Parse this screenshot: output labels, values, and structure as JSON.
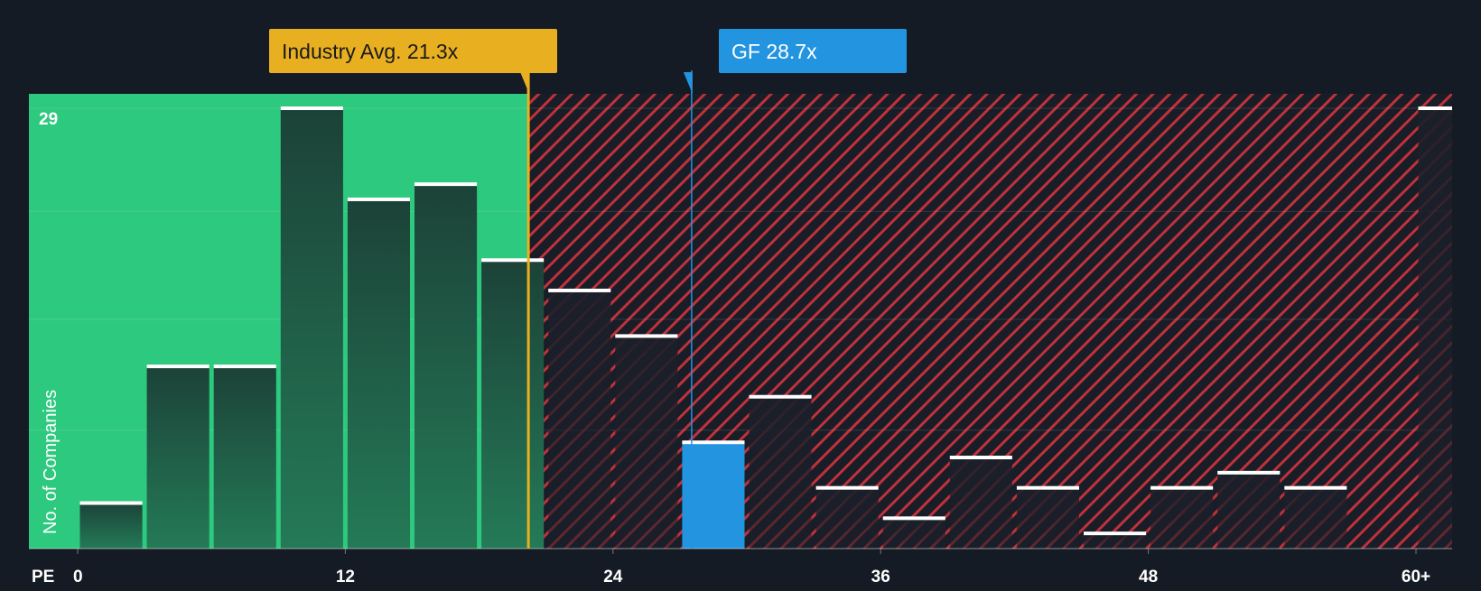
{
  "chart_data": {
    "type": "bar",
    "title": "",
    "xlabel": "PE",
    "ylabel": "No. of Companies",
    "y_tick_label": "29",
    "ylim": [
      0,
      30
    ],
    "xlim": [
      0,
      61.5
    ],
    "x_ticks": [
      {
        "value": 0,
        "label": "0"
      },
      {
        "value": 12,
        "label": "12"
      },
      {
        "value": 24,
        "label": "24"
      },
      {
        "value": 36,
        "label": "36"
      },
      {
        "value": 48,
        "label": "48"
      },
      {
        "value": 60,
        "label": "60+"
      }
    ],
    "bin_width": 3,
    "bins": [
      {
        "start": 0,
        "value": 3
      },
      {
        "start": 3,
        "value": 12
      },
      {
        "start": 6,
        "value": 12
      },
      {
        "start": 9,
        "value": 29
      },
      {
        "start": 12,
        "value": 23
      },
      {
        "start": 15,
        "value": 24
      },
      {
        "start": 18,
        "value": 19
      },
      {
        "start": 21,
        "value": 17
      },
      {
        "start": 24,
        "value": 14
      },
      {
        "start": 27,
        "value": 7
      },
      {
        "start": 30,
        "value": 10
      },
      {
        "start": 33,
        "value": 4
      },
      {
        "start": 36,
        "value": 2
      },
      {
        "start": 39,
        "value": 6
      },
      {
        "start": 42,
        "value": 4
      },
      {
        "start": 45,
        "value": 1
      },
      {
        "start": 48,
        "value": 4
      },
      {
        "start": 51,
        "value": 5
      },
      {
        "start": 54,
        "value": 4
      },
      {
        "start": 57,
        "value": 0
      },
      {
        "start": 60,
        "value": 29
      }
    ],
    "highlight_bin_start": 27,
    "industry_avg": {
      "value": 21.3,
      "label": "Industry Avg. 21.3x"
    },
    "company": {
      "value": 28.7,
      "label": "GF 28.7x"
    },
    "grid": true,
    "colors": {
      "background": "#151b24",
      "good_zone": "#2dc97e",
      "bar_in_good": "#1f4a3e",
      "bar_in_bad": "#181d27",
      "hatch": "#c0313a",
      "highlight": "#2394e0",
      "industry": "#e8b020",
      "bar_top": "#ffffff",
      "axis_text": "#ffffff"
    }
  }
}
